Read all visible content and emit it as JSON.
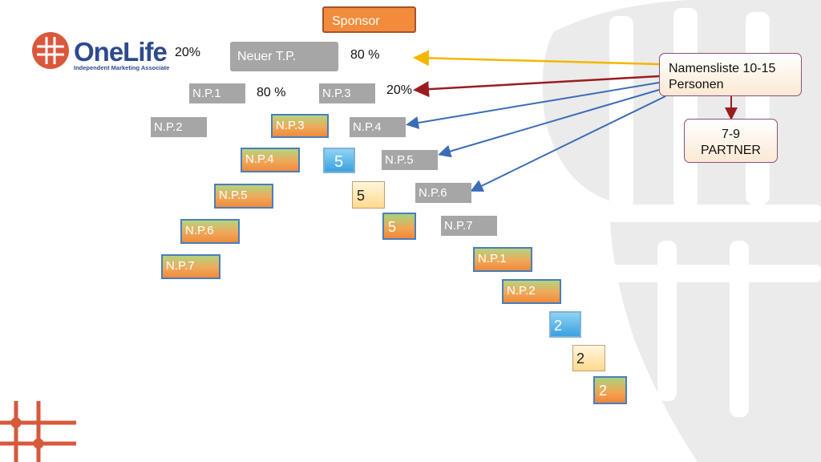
{
  "brand": {
    "name": "OneLife",
    "tagline": "Independent Marketing Associate",
    "color_primary": "#2d4a8e",
    "color_accent": "#d9583b"
  },
  "sponsor": {
    "label": "Sponsor"
  },
  "center": {
    "label": "Neuer T.P.",
    "left_pct": "20%",
    "right_pct": "80 %"
  },
  "level2": {
    "left": "N.P.1",
    "left_pct": "80 %",
    "right": "N.P.3",
    "right_pct": "20%"
  },
  "left_chain": [
    "N.P.2",
    "N.P.3",
    "N.P.4",
    "N.P.5",
    "N.P.6",
    "N.P.7"
  ],
  "right_chain": [
    "N.P.4",
    "N.P.5",
    "N.P.6",
    "N.P.7",
    "N.P.1",
    "N.P.2"
  ],
  "numbers": [
    "5",
    "5",
    "5",
    "2",
    "2",
    "2"
  ],
  "namensliste": {
    "line1": "Namensliste 10-15",
    "line2": "Personen"
  },
  "partner": {
    "line1": "7-9",
    "line2": "PARTNER"
  },
  "colors": {
    "arrow_yellow": "#f2b800",
    "arrow_red": "#9b1c20",
    "arrow_blue": "#3b6cb7"
  }
}
